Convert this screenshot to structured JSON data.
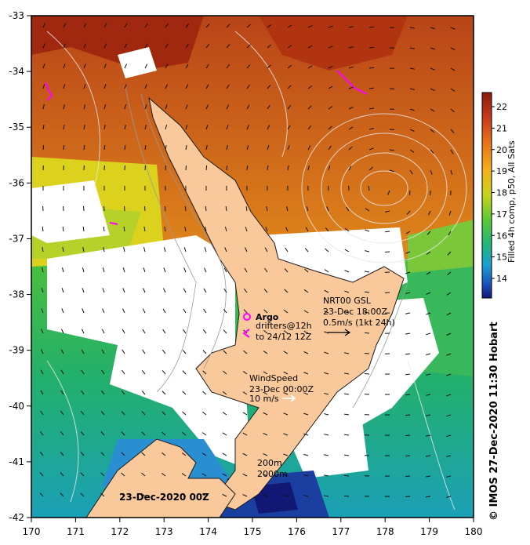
{
  "map": {
    "lon_ticks": [
      "170",
      "171",
      "172",
      "173",
      "174",
      "175",
      "176",
      "177",
      "178",
      "179",
      "180"
    ],
    "lat_ticks": [
      "-33",
      "-34",
      "-35",
      "-36",
      "-37",
      "-38",
      "-39",
      "-40",
      "-41",
      "-42"
    ],
    "colorbar": {
      "ticks": [
        "22",
        "21",
        "20",
        "19",
        "18",
        "17",
        "16",
        "15",
        "14"
      ],
      "label": "Filled 4h comp, p50, All Sats"
    },
    "legend_argo": {
      "title": "Argo",
      "line1": "drifters@12h",
      "line2": "to 24/12 12Z"
    },
    "legend_current": {
      "line1": "NRT00 GSL",
      "line2": "23-Dec 18:00Z",
      "line3": "0.5m/s (1kt 24h)"
    },
    "legend_wind": {
      "line1": "WindSpeed",
      "line2": "23-Dec 00:00Z",
      "line3": "10 m/s"
    },
    "legend_depth": {
      "line1": "200m",
      "line2": "2000m"
    },
    "date_label": "23-Dec-2020 00Z",
    "credit": "© IMOS 27-Dec-2020 11:30 Hobart",
    "colors": {
      "land": "#f9c89b",
      "argo": "#ff00ff",
      "warm": "#c8501a",
      "cool": "#1f9e6a"
    }
  }
}
